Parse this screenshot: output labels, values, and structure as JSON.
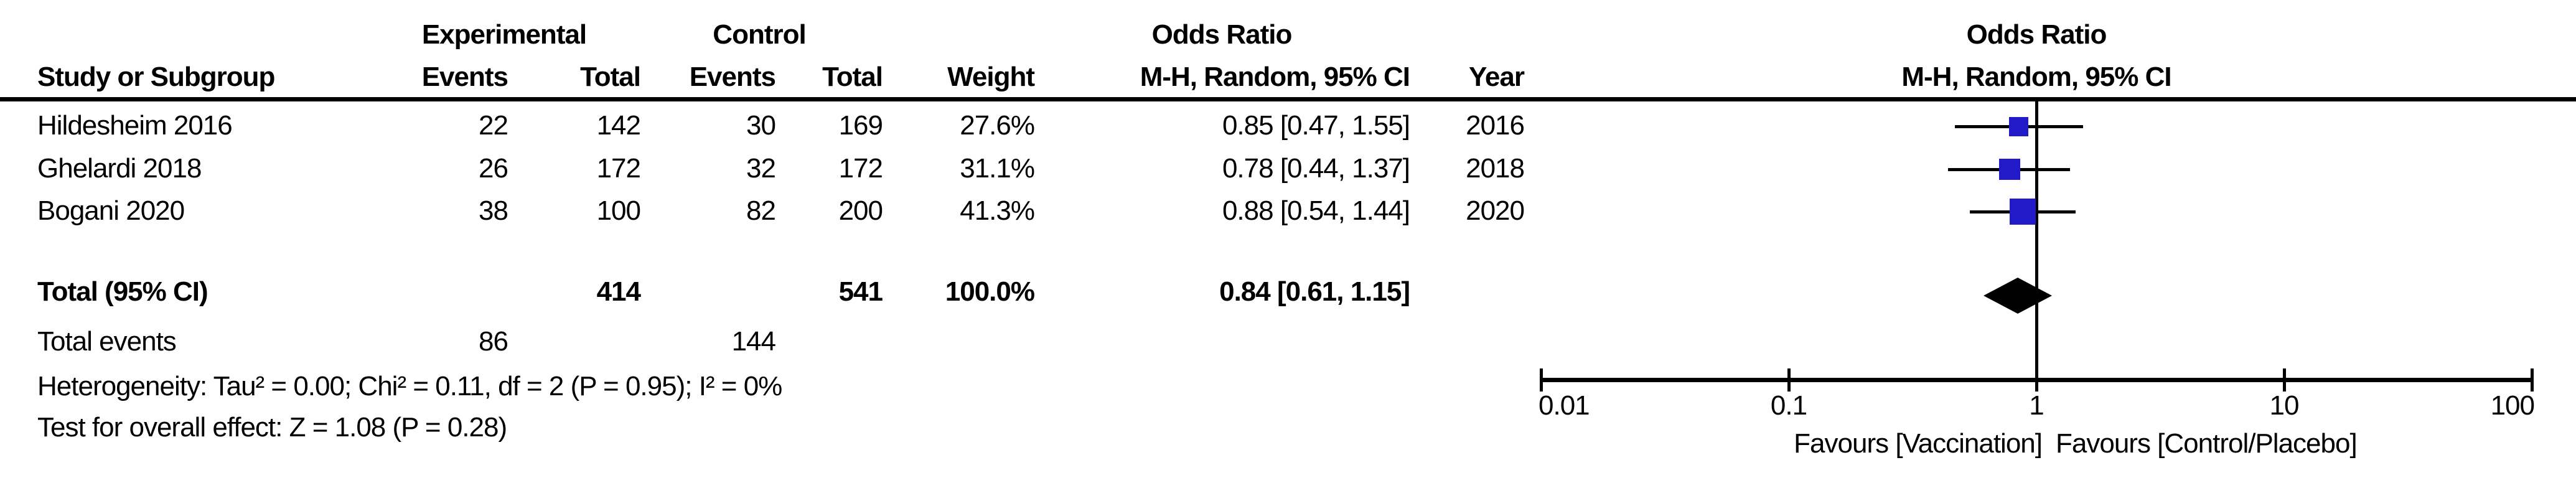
{
  "header": {
    "group_experimental": "Experimental",
    "group_control": "Control",
    "odds_ratio_left_line1": "Odds Ratio",
    "odds_ratio_left_line2": "M-H, Random, 95% CI",
    "odds_ratio_right_line1": "Odds Ratio",
    "odds_ratio_right_line2": "M-H, Random, 95% CI",
    "col_study": "Study or Subgroup",
    "col_events": "Events",
    "col_total": "Total",
    "col_events2": "Events",
    "col_total2": "Total",
    "col_weight": "Weight",
    "col_year": "Year"
  },
  "chart_data": {
    "type": "forest",
    "effect_measure": "Odds Ratio",
    "method": "M-H, Random, 95% CI",
    "x_scale": "log10",
    "x_ticks": [
      0.01,
      0.1,
      1,
      10,
      100
    ],
    "x_tick_labels": [
      "0.01",
      "0.1",
      "1",
      "10",
      "100"
    ],
    "studies": [
      {
        "name": "Hildesheim 2016",
        "events_experimental": 22,
        "total_experimental": 142,
        "events_control": 30,
        "total_control": 169,
        "weight_label": "27.6%",
        "weight_pct": 27.6,
        "or": 0.85,
        "ci_low": 0.47,
        "ci_high": 1.55,
        "or_ci_label": "0.85 [0.47, 1.55]",
        "year": 2016
      },
      {
        "name": "Ghelardi 2018",
        "events_experimental": 26,
        "total_experimental": 172,
        "events_control": 32,
        "total_control": 172,
        "weight_label": "31.1%",
        "weight_pct": 31.1,
        "or": 0.78,
        "ci_low": 0.44,
        "ci_high": 1.37,
        "or_ci_label": "0.78 [0.44, 1.37]",
        "year": 2018
      },
      {
        "name": "Bogani 2020",
        "events_experimental": 38,
        "total_experimental": 100,
        "events_control": 82,
        "total_control": 200,
        "weight_label": "41.3%",
        "weight_pct": 41.3,
        "or": 0.88,
        "ci_low": 0.54,
        "ci_high": 1.44,
        "or_ci_label": "0.88 [0.54, 1.44]",
        "year": 2020
      }
    ],
    "total": {
      "label": "Total (95% CI)",
      "total_experimental": 414,
      "total_control": 541,
      "weight_label": "100.0%",
      "or": 0.84,
      "ci_low": 0.61,
      "ci_high": 1.15,
      "or_ci_label": "0.84 [0.61, 1.15]"
    },
    "total_events": {
      "label": "Total events",
      "experimental": 86,
      "control": 144
    },
    "footnotes": {
      "heterogeneity": "Heterogeneity: Tau² = 0.00; Chi² = 0.11, df = 2 (P = 0.95); I² = 0%",
      "overall_effect": "Test for overall effect: Z = 1.08 (P = 0.28)"
    },
    "axis_labels": {
      "favours_left": "Favours [Vaccination]",
      "favours_right": "Favours [Control/Placebo]"
    }
  },
  "colors": {
    "square_blue": "#221AC9",
    "line_black": "#000000",
    "background": "#FFFFFF"
  }
}
